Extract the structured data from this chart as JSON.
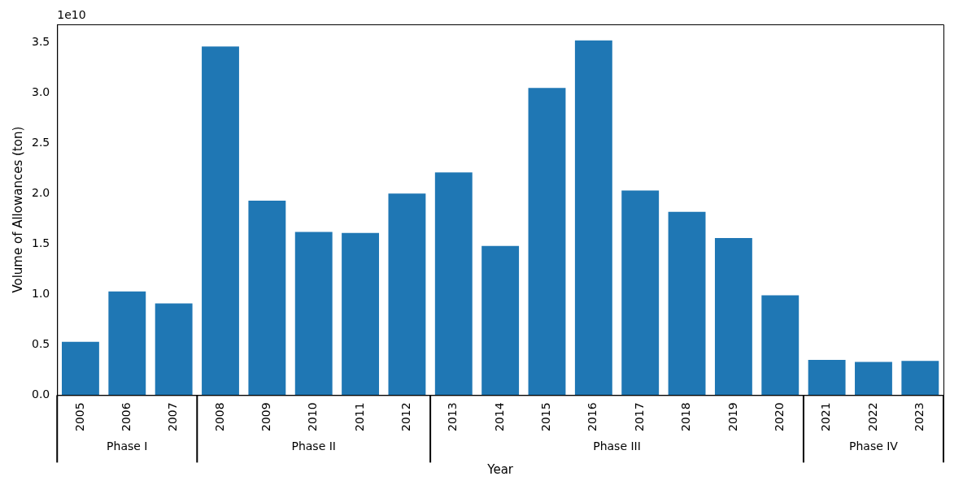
{
  "chart_data": {
    "type": "bar",
    "xlabel": "Year",
    "ylabel": "Volume of Allowances (ton)",
    "categories": [
      "2005",
      "2006",
      "2007",
      "2008",
      "2009",
      "2010",
      "2011",
      "2012",
      "2013",
      "2014",
      "2015",
      "2016",
      "2017",
      "2018",
      "2019",
      "2020",
      "2021",
      "2022",
      "2023"
    ],
    "values": [
      0.53,
      1.03,
      0.91,
      3.46,
      1.93,
      1.62,
      1.61,
      2.0,
      2.21,
      1.48,
      3.05,
      3.52,
      2.03,
      1.82,
      1.56,
      0.99,
      0.35,
      0.33,
      0.34
    ],
    "color": "#1f77b4",
    "ylim": [
      0,
      3.68
    ],
    "yticks": [
      {
        "value": 0,
        "label": "0.0"
      },
      {
        "value": 0.5,
        "label": "0.5"
      },
      {
        "value": 1,
        "label": "1.0"
      },
      {
        "value": 1.5,
        "label": "1.5"
      },
      {
        "value": 2,
        "label": "2.0"
      },
      {
        "value": 2.5,
        "label": "2.5"
      },
      {
        "value": 3,
        "label": "3.0"
      },
      {
        "value": 3.5,
        "label": "3.5"
      }
    ],
    "grid": false,
    "legend": false,
    "annotations": [
      "1e10",
      "Phase I",
      "Phase II",
      "Phase III",
      "Phase IV"
    ]
  }
}
